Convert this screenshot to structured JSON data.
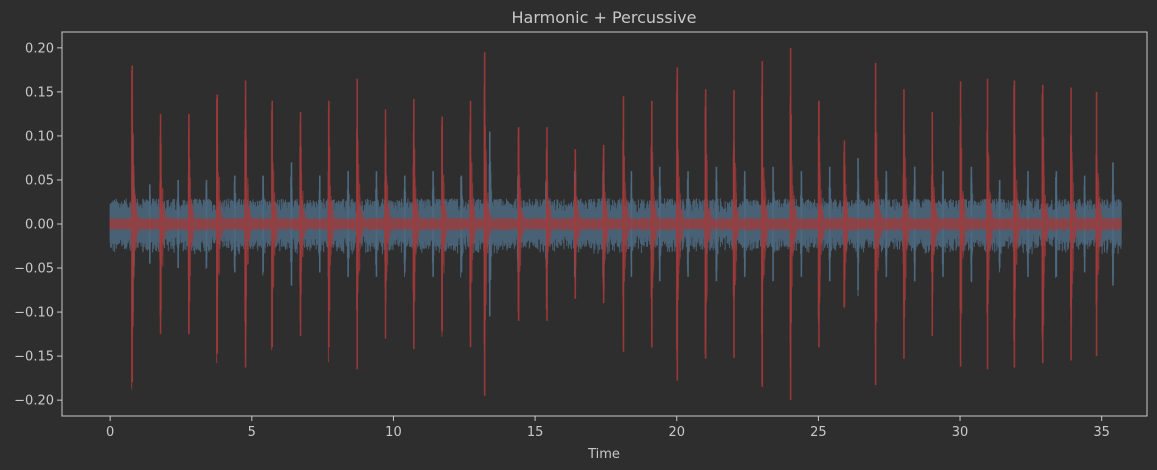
{
  "chart_data": {
    "type": "line",
    "title": "Harmonic + Percussive",
    "xlabel": "Time",
    "ylabel": "",
    "xlim": [
      -1.7,
      36.6
    ],
    "ylim": [
      -0.218,
      0.218
    ],
    "x_ticks": [
      0,
      5,
      10,
      15,
      20,
      25,
      30,
      35
    ],
    "y_ticks": [
      0.2,
      0.15,
      0.1,
      0.05,
      0.0,
      -0.05,
      -0.1,
      -0.15,
      -0.2
    ],
    "x_tick_labels": [
      "0",
      "5",
      "10",
      "15",
      "20",
      "25",
      "30",
      "35"
    ],
    "y_tick_labels": [
      "0.20",
      "0.15",
      "0.10",
      "0.05",
      "0.00",
      "−0.05",
      "−0.10",
      "−0.15",
      "−0.20"
    ],
    "grid": false,
    "duration": 35.7,
    "series": [
      {
        "role": "harmonic",
        "color": "#4d6a80",
        "baseline_amplitude": 0.02,
        "peaks": [
          {
            "t": 0.8,
            "a": 0.1
          },
          {
            "t": 1.4,
            "a": 0.045
          },
          {
            "t": 2.4,
            "a": 0.05
          },
          {
            "t": 3.4,
            "a": 0.05
          },
          {
            "t": 4.4,
            "a": 0.055
          },
          {
            "t": 5.4,
            "a": 0.055
          },
          {
            "t": 6.4,
            "a": 0.07
          },
          {
            "t": 7.4,
            "a": 0.055
          },
          {
            "t": 8.4,
            "a": 0.06
          },
          {
            "t": 9.4,
            "a": 0.06
          },
          {
            "t": 10.4,
            "a": 0.055
          },
          {
            "t": 11.4,
            "a": 0.06
          },
          {
            "t": 12.4,
            "a": 0.055
          },
          {
            "t": 13.4,
            "a": 0.105
          },
          {
            "t": 14.4,
            "a": 0.055
          },
          {
            "t": 15.4,
            "a": 0.05
          },
          {
            "t": 16.4,
            "a": 0.06
          },
          {
            "t": 17.4,
            "a": 0.06
          },
          {
            "t": 18.4,
            "a": 0.06
          },
          {
            "t": 19.4,
            "a": 0.065
          },
          {
            "t": 20.4,
            "a": 0.06
          },
          {
            "t": 21.4,
            "a": 0.065
          },
          {
            "t": 22.4,
            "a": 0.06
          },
          {
            "t": 23.4,
            "a": 0.065
          },
          {
            "t": 24.4,
            "a": 0.06
          },
          {
            "t": 25.4,
            "a": 0.065
          },
          {
            "t": 26.4,
            "a": 0.075
          },
          {
            "t": 27.4,
            "a": 0.06
          },
          {
            "t": 28.4,
            "a": 0.065
          },
          {
            "t": 29.4,
            "a": 0.06
          },
          {
            "t": 30.4,
            "a": 0.065
          },
          {
            "t": 31.4,
            "a": 0.05
          },
          {
            "t": 32.4,
            "a": 0.06
          },
          {
            "t": 33.4,
            "a": 0.06
          },
          {
            "t": 34.4,
            "a": 0.055
          },
          {
            "t": 35.4,
            "a": 0.07
          }
        ]
      },
      {
        "role": "percussive",
        "color": "#a33a3a",
        "baseline_amplitude": 0.005,
        "peaks": [
          {
            "t": 0.78,
            "a": 0.18
          },
          {
            "t": 1.78,
            "a": 0.125
          },
          {
            "t": 2.78,
            "a": 0.125
          },
          {
            "t": 3.78,
            "a": 0.147
          },
          {
            "t": 4.78,
            "a": 0.163
          },
          {
            "t": 5.72,
            "a": 0.14
          },
          {
            "t": 6.72,
            "a": 0.127
          },
          {
            "t": 7.72,
            "a": 0.14
          },
          {
            "t": 8.72,
            "a": 0.165
          },
          {
            "t": 9.72,
            "a": 0.13
          },
          {
            "t": 10.72,
            "a": 0.142
          },
          {
            "t": 11.72,
            "a": 0.122
          },
          {
            "t": 12.72,
            "a": 0.14
          },
          {
            "t": 13.22,
            "a": 0.195
          },
          {
            "t": 14.42,
            "a": 0.11
          },
          {
            "t": 15.42,
            "a": 0.11
          },
          {
            "t": 16.42,
            "a": 0.085
          },
          {
            "t": 17.42,
            "a": 0.09
          },
          {
            "t": 18.12,
            "a": 0.145
          },
          {
            "t": 19.12,
            "a": 0.14
          },
          {
            "t": 20.02,
            "a": 0.178
          },
          {
            "t": 21.02,
            "a": 0.153
          },
          {
            "t": 22.02,
            "a": 0.152
          },
          {
            "t": 23.02,
            "a": 0.185
          },
          {
            "t": 24.02,
            "a": 0.2
          },
          {
            "t": 25.02,
            "a": 0.14
          },
          {
            "t": 25.92,
            "a": 0.095
          },
          {
            "t": 27.02,
            "a": 0.183
          },
          {
            "t": 28.02,
            "a": 0.153
          },
          {
            "t": 29.02,
            "a": 0.127
          },
          {
            "t": 30.02,
            "a": 0.162
          },
          {
            "t": 30.97,
            "a": 0.165
          },
          {
            "t": 31.92,
            "a": 0.163
          },
          {
            "t": 32.92,
            "a": 0.158
          },
          {
            "t": 33.92,
            "a": 0.155
          },
          {
            "t": 34.82,
            "a": 0.15
          }
        ]
      }
    ]
  },
  "colors": {
    "background": "#2e2e2e",
    "axes_frame": "#c8c8c8",
    "text": "#c8c8c8"
  }
}
